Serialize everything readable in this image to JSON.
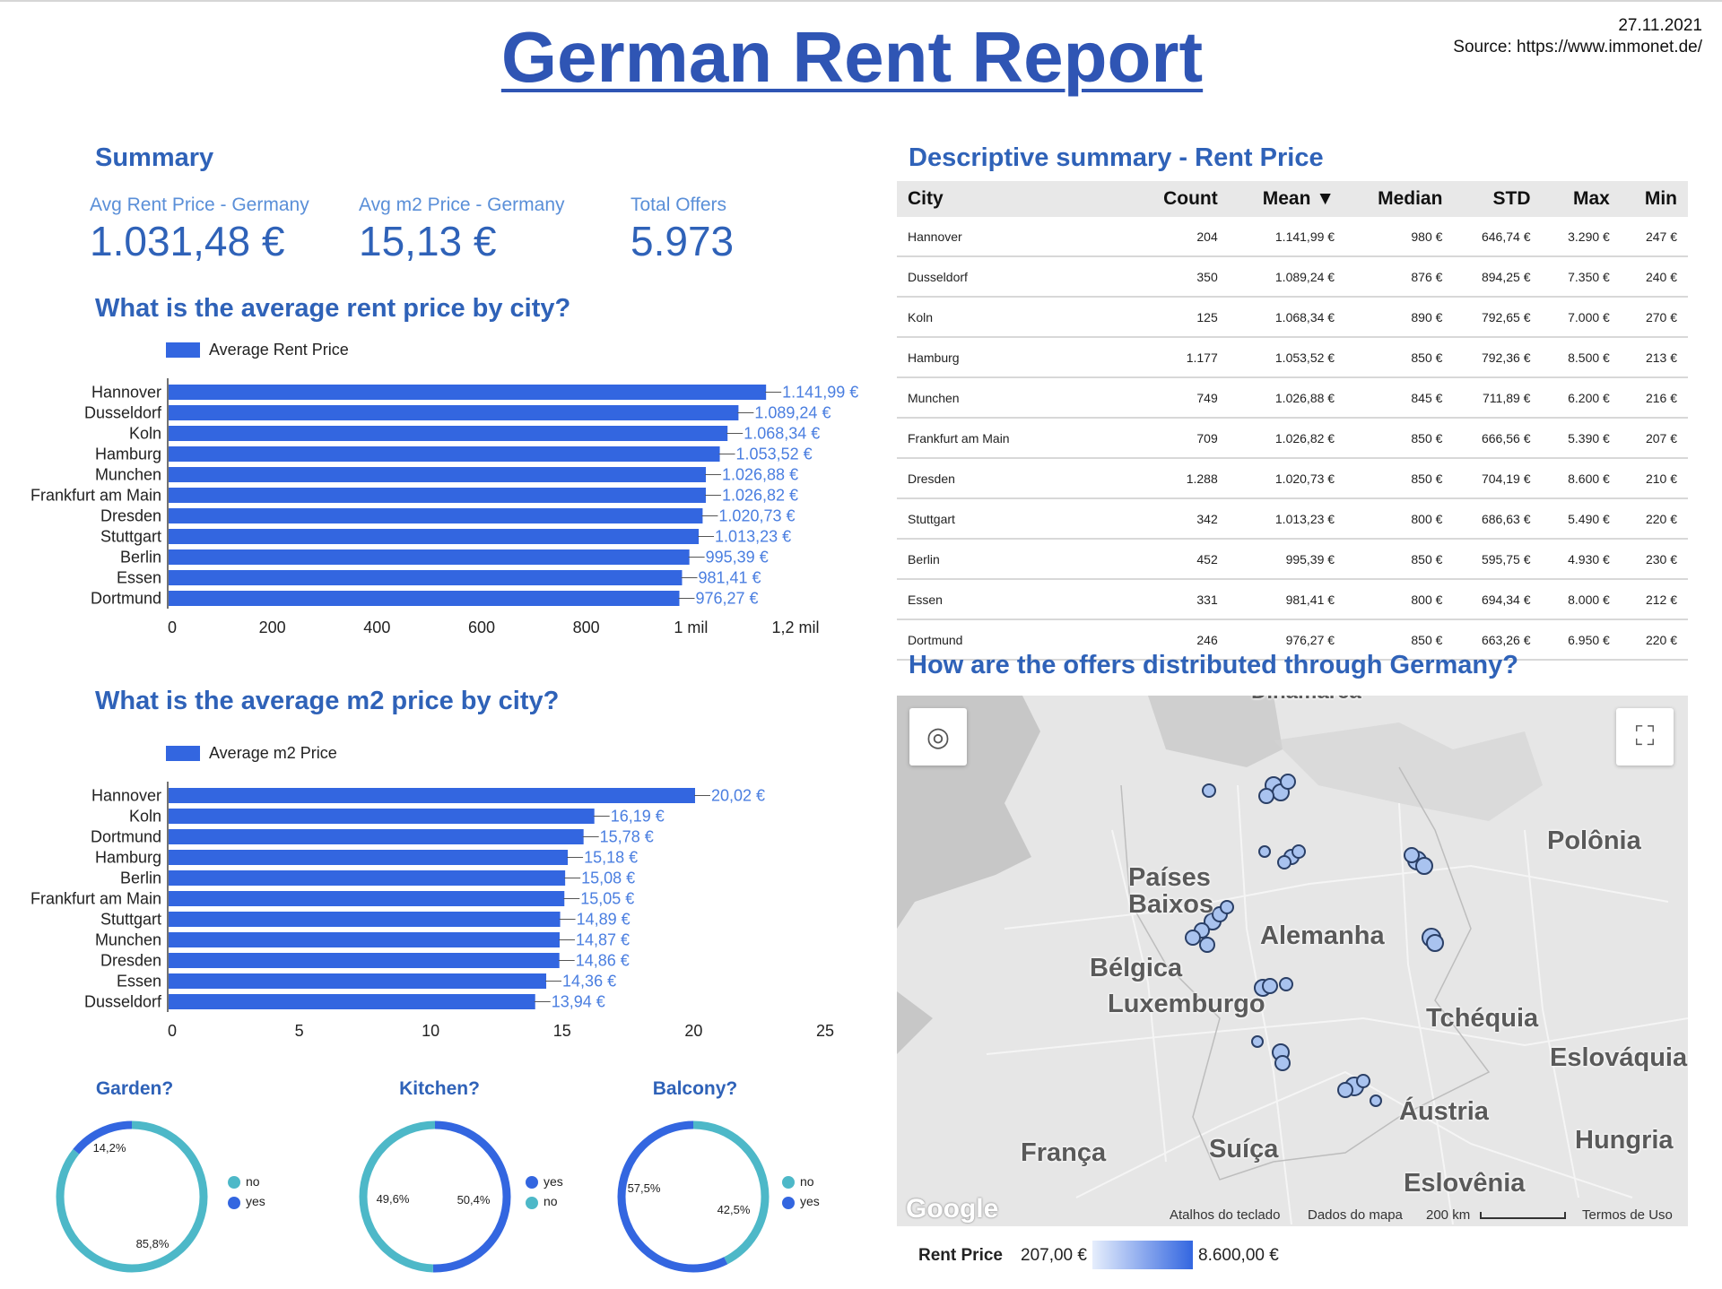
{
  "header": {
    "title": "German Rent Report",
    "date": "27.11.2021",
    "source": "Source: https://www.immonet.de/"
  },
  "summary": {
    "title": "Summary",
    "kpis": [
      {
        "label": "Avg Rent Price - Germany",
        "value": "1.031,48 €"
      },
      {
        "label": "Avg m2 Price - Germany",
        "value": "15,13 €"
      },
      {
        "label": "Total Offers",
        "value": "5.973"
      }
    ]
  },
  "colors": {
    "accent": "#3366e0",
    "title": "#2f55b4",
    "teal": "#4db8c8",
    "blue": "#3366e0"
  },
  "chart_data": [
    {
      "type": "bar",
      "orientation": "horizontal",
      "title": "What is the average rent price by city?",
      "legend": "Average Rent Price",
      "categories": [
        "Hannover",
        "Dusseldorf",
        "Koln",
        "Hamburg",
        "Munchen",
        "Frankfurt am Main",
        "Dresden",
        "Stuttgart",
        "Berlin",
        "Essen",
        "Dortmund"
      ],
      "values": [
        1141.99,
        1089.24,
        1068.34,
        1053.52,
        1026.88,
        1026.82,
        1020.73,
        1013.23,
        995.39,
        981.41,
        976.27
      ],
      "data_labels": [
        "1.141,99 €",
        "1.089,24 €",
        "1.068,34 €",
        "1.053,52 €",
        "1.026,88 €",
        "1.026,82 €",
        "1.020,73 €",
        "1.013,23 €",
        "995,39 €",
        "981,41 €",
        "976,27 €"
      ],
      "xlim": [
        0,
        1200
      ],
      "xticks": [
        0,
        200,
        400,
        600,
        800,
        1000,
        1200
      ],
      "xtick_labels": [
        "0",
        "200",
        "400",
        "600",
        "800",
        "1 mil",
        "1,2 mil"
      ]
    },
    {
      "type": "bar",
      "orientation": "horizontal",
      "title": "What is the average m2 price by city?",
      "legend": "Average m2 Price",
      "categories": [
        "Hannover",
        "Koln",
        "Dortmund",
        "Hamburg",
        "Berlin",
        "Frankfurt am Main",
        "Stuttgart",
        "Munchen",
        "Dresden",
        "Essen",
        "Dusseldorf"
      ],
      "values": [
        20.02,
        16.19,
        15.78,
        15.18,
        15.08,
        15.05,
        14.89,
        14.87,
        14.86,
        14.36,
        13.94
      ],
      "data_labels": [
        "20,02 €",
        "16,19 €",
        "15,78 €",
        "15,18 €",
        "15,08 €",
        "15,05 €",
        "14,89 €",
        "14,87 €",
        "14,86 €",
        "14,36 €",
        "13,94 €"
      ],
      "xlim": [
        0,
        25
      ],
      "xticks": [
        0,
        5,
        10,
        15,
        20,
        25
      ],
      "xtick_labels": [
        "0",
        "5",
        "10",
        "15",
        "20",
        "25"
      ]
    },
    {
      "type": "pie",
      "style": "donut",
      "title": "Garden?",
      "slices": [
        {
          "name": "no",
          "value": 85.8,
          "label": "85,8%",
          "color": "#4db8c8"
        },
        {
          "name": "yes",
          "value": 14.2,
          "label": "14,2%",
          "color": "#3366e0"
        }
      ]
    },
    {
      "type": "pie",
      "style": "donut",
      "title": "Kitchen?",
      "slices": [
        {
          "name": "yes",
          "value": 50.4,
          "label": "50,4%",
          "color": "#3366e0"
        },
        {
          "name": "no",
          "value": 49.6,
          "label": "49,6%",
          "color": "#4db8c8"
        }
      ]
    },
    {
      "type": "pie",
      "style": "donut",
      "title": "Balcony?",
      "slices": [
        {
          "name": "no",
          "value": 42.5,
          "label": "42,5%",
          "color": "#4db8c8"
        },
        {
          "name": "yes",
          "value": 57.5,
          "label": "57,5%",
          "color": "#3366e0"
        }
      ]
    },
    {
      "type": "table",
      "title": "Descriptive summary - Rent Price",
      "columns": [
        "City",
        "Count",
        "Mean ▼",
        "Median",
        "STD",
        "Max",
        "Min"
      ],
      "rows": [
        [
          "Hannover",
          "204",
          "1.141,99 €",
          "980 €",
          "646,74 €",
          "3.290 €",
          "247 €"
        ],
        [
          "Dusseldorf",
          "350",
          "1.089,24 €",
          "876 €",
          "894,25 €",
          "7.350 €",
          "240 €"
        ],
        [
          "Koln",
          "125",
          "1.068,34 €",
          "890 €",
          "792,65 €",
          "7.000 €",
          "270 €"
        ],
        [
          "Hamburg",
          "1.177",
          "1.053,52 €",
          "850 €",
          "792,36 €",
          "8.500 €",
          "213 €"
        ],
        [
          "Munchen",
          "749",
          "1.026,88 €",
          "845 €",
          "711,89 €",
          "6.200 €",
          "216 €"
        ],
        [
          "Frankfurt am Main",
          "709",
          "1.026,82 €",
          "850 €",
          "666,56 €",
          "5.390 €",
          "207 €"
        ],
        [
          "Dresden",
          "1.288",
          "1.020,73 €",
          "850 €",
          "704,19 €",
          "8.600 €",
          "210 €"
        ],
        [
          "Stuttgart",
          "342",
          "1.013,23 €",
          "800 €",
          "686,63 €",
          "5.490 €",
          "220 €"
        ],
        [
          "Berlin",
          "452",
          "995,39 €",
          "850 €",
          "595,75 €",
          "4.930 €",
          "230 €"
        ],
        [
          "Essen",
          "331",
          "981,41 €",
          "800 €",
          "694,34 €",
          "8.000 €",
          "212 €"
        ],
        [
          "Dortmund",
          "246",
          "976,27 €",
          "850 €",
          "663,26 €",
          "6.950 €",
          "220 €"
        ]
      ]
    }
  ],
  "map": {
    "title": "How are the offers distributed through Germany?",
    "labels": [
      "Dinamarca",
      "Polônia",
      "Países Baixos",
      "Alemanha",
      "Bélgica",
      "Luxemburgo",
      "Tchéquia",
      "Eslováquia",
      "Áustria",
      "Hungria",
      "França",
      "Suíça",
      "Eslovênia"
    ],
    "footer": [
      "Atalhos do teclado",
      "Dados do mapa",
      "200 km",
      "Termos de Uso"
    ],
    "brand": "Google",
    "legend_title": "Rent Price",
    "legend_min": "207,00 €",
    "legend_max": "8.600,00 €",
    "icons": [
      "locate-icon",
      "fullscreen-icon"
    ]
  }
}
